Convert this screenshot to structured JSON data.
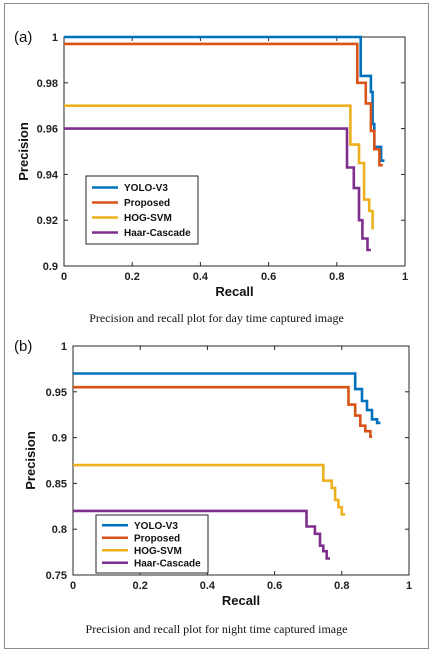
{
  "colors": {
    "yolo": "#0072BD",
    "proposed": "#D95319",
    "hog": "#EDB120",
    "haar": "#7E2F8E"
  },
  "chart_data": [
    {
      "type": "line",
      "panel_label": "(a)",
      "caption": "Precision and recall plot for day time captured image",
      "xlabel": "Recall",
      "ylabel": "Precision",
      "xlim": [
        0,
        1
      ],
      "ylim": [
        0.9,
        1
      ],
      "xticks": [
        "0",
        "0.2",
        "0.4",
        "0.6",
        "0.8",
        "1"
      ],
      "yticks": [
        "0.9",
        "0.92",
        "0.94",
        "0.96",
        "0.98",
        "1"
      ],
      "xtick_values": [
        0,
        0.2,
        0.4,
        0.6,
        0.8,
        1
      ],
      "ytick_values": [
        0.9,
        0.92,
        0.94,
        0.96,
        0.98,
        1
      ],
      "grid": false,
      "legend_position": "bottom-left",
      "series": [
        {
          "name": "YOLO-V3",
          "color_key": "yolo",
          "x": [
            0,
            0.87,
            0.87,
            0.9,
            0.9,
            0.905,
            0.905,
            0.91,
            0.91,
            0.93,
            0.93,
            0.94
          ],
          "y": [
            1,
            1,
            0.983,
            0.983,
            0.976,
            0.976,
            0.962,
            0.962,
            0.952,
            0.952,
            0.946,
            0.946
          ]
        },
        {
          "name": "Proposed",
          "color_key": "proposed",
          "x": [
            0,
            0.86,
            0.86,
            0.885,
            0.885,
            0.9,
            0.9,
            0.91,
            0.91,
            0.925,
            0.925,
            0.935
          ],
          "y": [
            0.997,
            0.997,
            0.98,
            0.98,
            0.971,
            0.971,
            0.959,
            0.959,
            0.951,
            0.951,
            0.944,
            0.944
          ]
        },
        {
          "name": "HOG-SVM",
          "color_key": "hog",
          "x": [
            0,
            0.84,
            0.84,
            0.865,
            0.865,
            0.88,
            0.88,
            0.895,
            0.895,
            0.905,
            0.905
          ],
          "y": [
            0.97,
            0.97,
            0.953,
            0.953,
            0.945,
            0.945,
            0.929,
            0.929,
            0.924,
            0.924,
            0.916
          ]
        },
        {
          "name": "Haar-Cascade",
          "color_key": "haar",
          "x": [
            0,
            0.83,
            0.83,
            0.85,
            0.85,
            0.865,
            0.865,
            0.875,
            0.875,
            0.89,
            0.89,
            0.9
          ],
          "y": [
            0.96,
            0.96,
            0.943,
            0.943,
            0.934,
            0.934,
            0.92,
            0.92,
            0.912,
            0.912,
            0.907,
            0.907
          ]
        }
      ]
    },
    {
      "type": "line",
      "panel_label": "(b)",
      "caption": "Precision and recall plot for night time captured image",
      "xlabel": "Recall",
      "ylabel": "Precision",
      "xlim": [
        0,
        1
      ],
      "ylim": [
        0.75,
        1
      ],
      "xticks": [
        "0",
        "0.2",
        "0.4",
        "0.6",
        "0.8",
        "1"
      ],
      "yticks": [
        "0.75",
        "0.8",
        "0.85",
        "0.9",
        "0.95",
        "1"
      ],
      "xtick_values": [
        0,
        0.2,
        0.4,
        0.6,
        0.8,
        1
      ],
      "ytick_values": [
        0.75,
        0.8,
        0.85,
        0.9,
        0.95,
        1
      ],
      "grid": false,
      "legend_position": "bottom-left",
      "series": [
        {
          "name": "YOLO-V3",
          "color_key": "yolo",
          "x": [
            0,
            0.84,
            0.84,
            0.86,
            0.86,
            0.875,
            0.875,
            0.89,
            0.89,
            0.905,
            0.905,
            0.915
          ],
          "y": [
            0.97,
            0.97,
            0.953,
            0.953,
            0.94,
            0.94,
            0.93,
            0.93,
            0.92,
            0.92,
            0.916,
            0.916
          ]
        },
        {
          "name": "Proposed",
          "color_key": "proposed",
          "x": [
            0,
            0.82,
            0.82,
            0.84,
            0.84,
            0.855,
            0.855,
            0.87,
            0.87,
            0.885,
            0.885,
            0.89
          ],
          "y": [
            0.955,
            0.955,
            0.936,
            0.936,
            0.924,
            0.924,
            0.913,
            0.913,
            0.907,
            0.907,
            0.901,
            0.901
          ]
        },
        {
          "name": "HOG-SVM",
          "color_key": "hog",
          "x": [
            0,
            0.745,
            0.745,
            0.77,
            0.77,
            0.78,
            0.78,
            0.79,
            0.79,
            0.8,
            0.8,
            0.81
          ],
          "y": [
            0.87,
            0.87,
            0.853,
            0.853,
            0.845,
            0.845,
            0.832,
            0.832,
            0.824,
            0.824,
            0.816,
            0.816
          ]
        },
        {
          "name": "Haar-Cascade",
          "color_key": "haar",
          "x": [
            0,
            0.695,
            0.695,
            0.72,
            0.72,
            0.735,
            0.735,
            0.745,
            0.745,
            0.755,
            0.755,
            0.765
          ],
          "y": [
            0.82,
            0.82,
            0.803,
            0.803,
            0.795,
            0.795,
            0.782,
            0.782,
            0.776,
            0.776,
            0.768,
            0.768
          ]
        }
      ]
    }
  ]
}
